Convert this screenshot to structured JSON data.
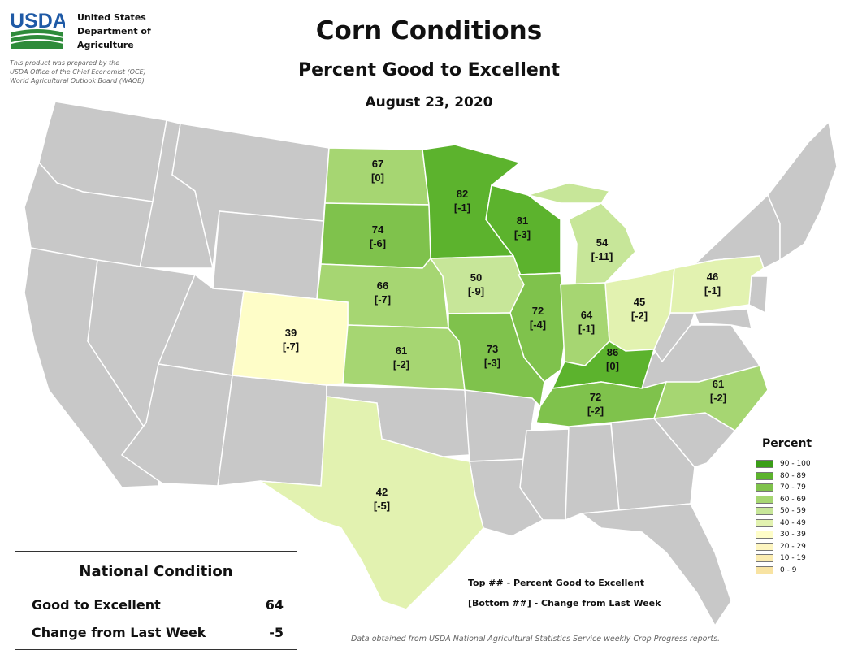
{
  "header": {
    "agency_line1": "United States",
    "agency_line2": "Department of",
    "agency_line3": "Agriculture",
    "logo_text": "USDA",
    "note_line1": "This product was prepared by the",
    "note_line2": "USDA Office of the Chief Economist (OCE)",
    "note_line3": "World Agricultural Outlook Board (WAOB)",
    "title": "Corn Conditions",
    "subtitle": "Percent Good to Excellent",
    "date": "August 23, 2020"
  },
  "map": {
    "no_data_color": "#c8c8c8",
    "states": [
      {
        "state": "ND",
        "percent": "67",
        "change": "[0]",
        "color": "#a6d672"
      },
      {
        "state": "SD",
        "percent": "74",
        "change": "[-6]",
        "color": "#7fc24c"
      },
      {
        "state": "MN",
        "percent": "82",
        "change": "[-1]",
        "color": "#5cb32d"
      },
      {
        "state": "WI",
        "percent": "81",
        "change": "[-3]",
        "color": "#5cb32d"
      },
      {
        "state": "MI",
        "percent": "54",
        "change": "[-11]",
        "color": "#c7e699"
      },
      {
        "state": "NE",
        "percent": "66",
        "change": "[-7]",
        "color": "#a6d672"
      },
      {
        "state": "IA",
        "percent": "50",
        "change": "[-9]",
        "color": "#c7e699"
      },
      {
        "state": "IL",
        "percent": "72",
        "change": "[-4]",
        "color": "#7fc24c"
      },
      {
        "state": "IN",
        "percent": "64",
        "change": "[-1]",
        "color": "#a6d672"
      },
      {
        "state": "OH",
        "percent": "45",
        "change": "[-2]",
        "color": "#e2f2b0"
      },
      {
        "state": "PA",
        "percent": "46",
        "change": "[-1]",
        "color": "#e2f2b0"
      },
      {
        "state": "CO",
        "percent": "39",
        "change": "[-7]",
        "color": "#fefdc8"
      },
      {
        "state": "KS",
        "percent": "61",
        "change": "[-2]",
        "color": "#a6d672"
      },
      {
        "state": "MO",
        "percent": "73",
        "change": "[-3]",
        "color": "#7fc24c"
      },
      {
        "state": "KY",
        "percent": "86",
        "change": "[0]",
        "color": "#5cb32d"
      },
      {
        "state": "TN",
        "percent": "72",
        "change": "[-2]",
        "color": "#7fc24c"
      },
      {
        "state": "NC",
        "percent": "61",
        "change": "[-2]",
        "color": "#a6d672"
      },
      {
        "state": "TX",
        "percent": "42",
        "change": "[-5]",
        "color": "#e2f2b0"
      }
    ]
  },
  "legend": {
    "title": "Percent",
    "items": [
      {
        "label": "90 - 100",
        "color": "#3a9e17"
      },
      {
        "label": "80 - 89",
        "color": "#5cb32d"
      },
      {
        "label": "70 - 79",
        "color": "#7fc24c"
      },
      {
        "label": "60 - 69",
        "color": "#a6d672"
      },
      {
        "label": "50 - 59",
        "color": "#c7e699"
      },
      {
        "label": "40 - 49",
        "color": "#e2f2b0"
      },
      {
        "label": "30 - 39",
        "color": "#fefdc8"
      },
      {
        "label": "20 - 29",
        "color": "#fdf5c0"
      },
      {
        "label": "10 - 19",
        "color": "#fbecb0"
      },
      {
        "label": "0 - 9",
        "color": "#f8e3a2"
      }
    ]
  },
  "national": {
    "title": "National Condition",
    "good_label": "Good to Excellent",
    "good_value": "64",
    "change_label": "Change from Last Week",
    "change_value": "-5"
  },
  "key": {
    "line1": "Top ## - Percent Good to Excellent",
    "line2": "[Bottom ##] - Change from Last Week"
  },
  "source": "Data obtained from USDA National Agricultural Statistics Service weekly Crop Progress reports."
}
